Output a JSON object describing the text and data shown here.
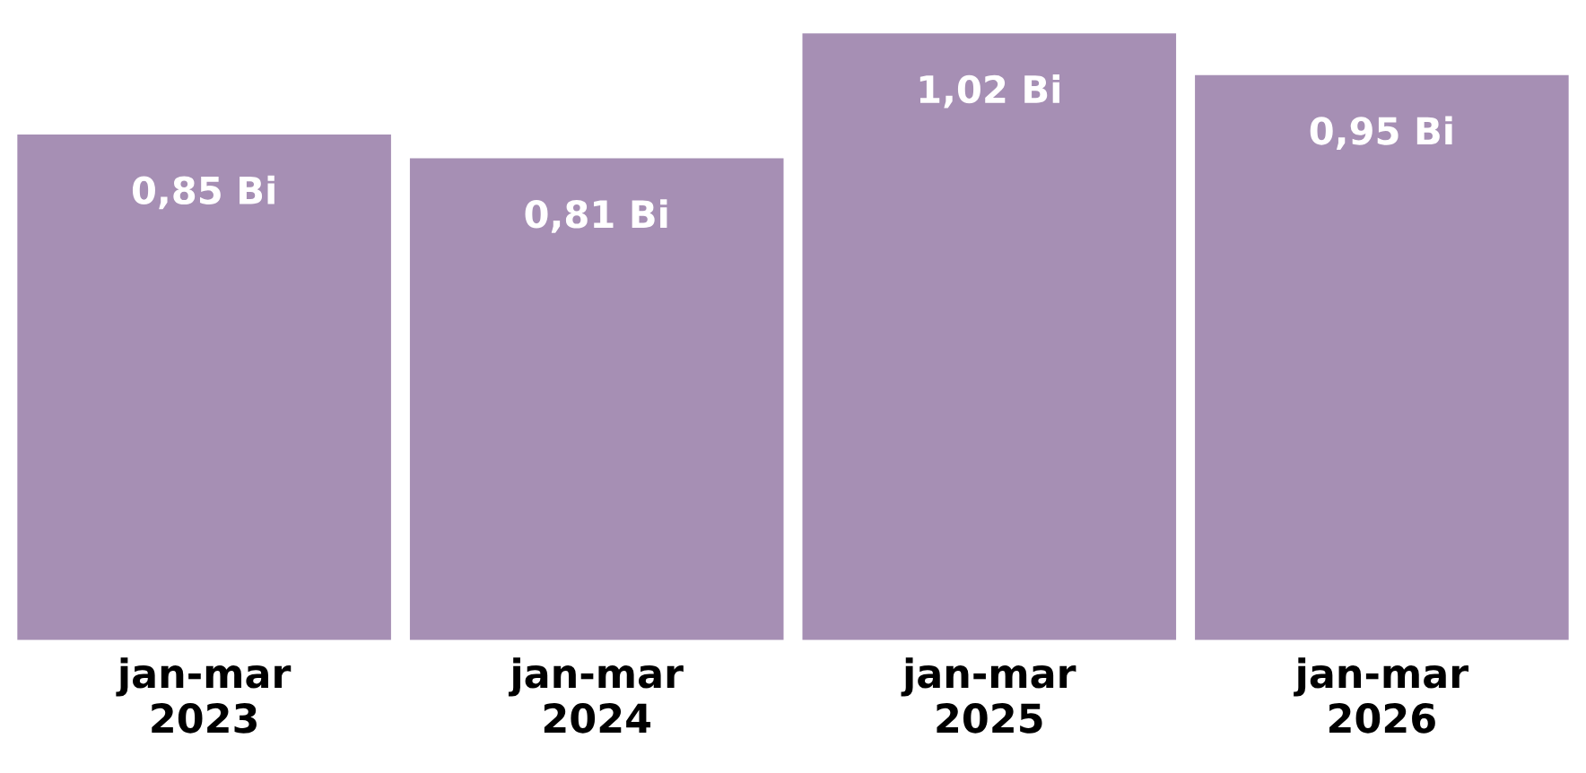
{
  "chart_data": {
    "type": "bar",
    "categories": [
      "jan-mar\n2023",
      "jan-mar\n2024",
      "jan-mar\n2025",
      "jan-mar\n2026"
    ],
    "values": [
      0.85,
      0.81,
      1.02,
      0.95
    ],
    "value_labels": [
      "0,85 Bi",
      "0,81 Bi",
      "1,02 Bi",
      "0,95 Bi"
    ],
    "color": "#a68fb4",
    "grid": false,
    "legend": false
  }
}
